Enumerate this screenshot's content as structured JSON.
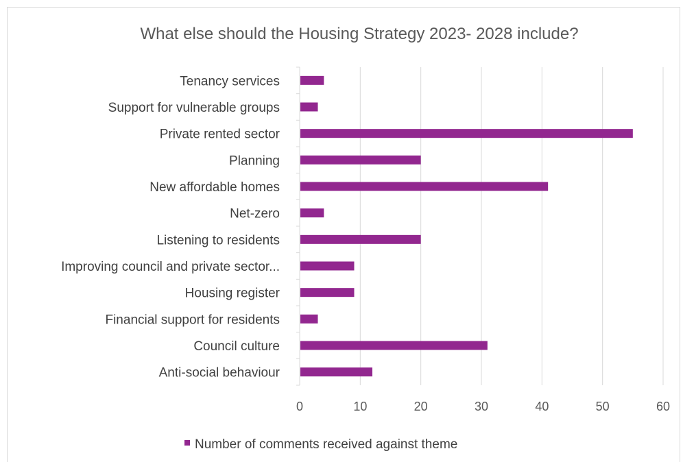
{
  "chart_data": {
    "type": "bar",
    "orientation": "horizontal",
    "title": "What else should the Housing Strategy 2023- 2028 include?",
    "categories": [
      "Tenancy services",
      "Support for vulnerable groups",
      "Private rented sector",
      "Planning",
      "New affordable homes",
      "Net-zero",
      "Listening to residents",
      "Improving council and private sector...",
      "Housing register",
      "Financial support for residents",
      "Council culture",
      "Anti-social behaviour"
    ],
    "series": [
      {
        "name": "Number of comments received against theme",
        "values": [
          4,
          3,
          55,
          20,
          41,
          4,
          20,
          9,
          9,
          3,
          31,
          12
        ],
        "color": "#92278f"
      }
    ],
    "xlim": [
      0,
      60
    ],
    "x_ticks": [
      "0",
      "10",
      "20",
      "30",
      "40",
      "50",
      "60"
    ],
    "grid": true,
    "legend_position": "bottom"
  }
}
